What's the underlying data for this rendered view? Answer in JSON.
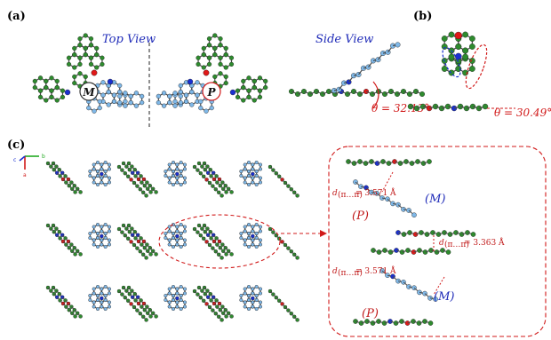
{
  "panels": {
    "a": "(a)",
    "b": "(b)",
    "c": "(c)"
  },
  "views": {
    "top": "Top View",
    "side": "Side View"
  },
  "chirality": {
    "M": "M",
    "P": "P"
  },
  "angles": {
    "a": "θ = 32.13°",
    "b": "θ = 30.49°"
  },
  "inset": {
    "labels": [
      "(M)",
      "(P)",
      "(M)",
      "(P)"
    ],
    "distances": [
      "= 3.571 Å",
      "= 3.363 Å",
      "= 3.571 Å"
    ],
    "d_main": "d",
    "d_sub": "(π…π)"
  },
  "axes": {
    "c": "c",
    "b": "b",
    "a": "a"
  },
  "colors": {
    "carbon": "#2e8b2e",
    "helix_carbon": "#7fb8e8",
    "nitrogen": "#1a2fd0",
    "oxygen": "#e01818",
    "annotation": "#d11a1a",
    "view_text": "#1f2bb8"
  }
}
